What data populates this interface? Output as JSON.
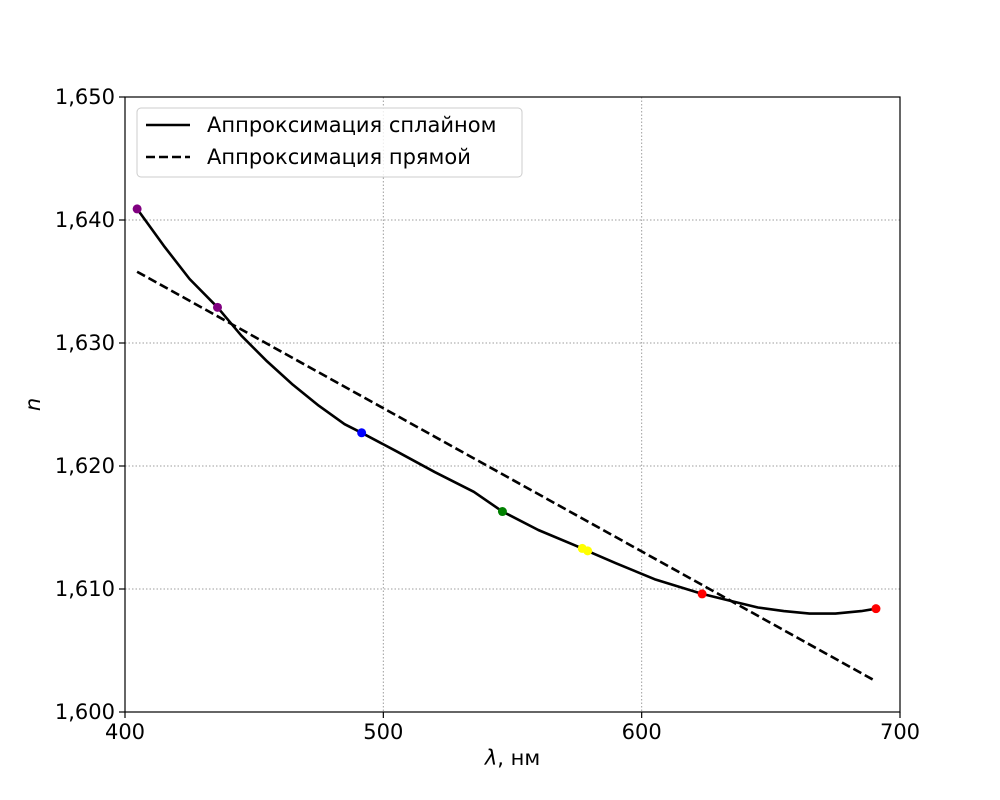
{
  "chart_data": {
    "type": "line",
    "title": "",
    "xlabel_symbol": "λ",
    "xlabel_unit": ", нм",
    "ylabel": "n",
    "xlim": [
      400,
      700
    ],
    "ylim": [
      1.6,
      1.65
    ],
    "x_ticks": [
      400,
      500,
      600,
      700
    ],
    "x_tick_labels": [
      "400",
      "500",
      "600",
      "700"
    ],
    "y_ticks": [
      1.6,
      1.61,
      1.62,
      1.63,
      1.64,
      1.65
    ],
    "y_tick_labels": [
      "1,600",
      "1,610",
      "1,620",
      "1,630",
      "1,640",
      "1,650"
    ],
    "grid": true,
    "legend_position": "upper-left",
    "series": [
      {
        "name": "Аппроксимация сплайном",
        "style": "solid",
        "color": "#000000",
        "points": [
          [
            404.7,
            1.6409
          ],
          [
            415,
            1.6379
          ],
          [
            425,
            1.6352
          ],
          [
            435.8,
            1.6329
          ],
          [
            445,
            1.6306
          ],
          [
            455,
            1.6285
          ],
          [
            465,
            1.6266
          ],
          [
            475,
            1.6249
          ],
          [
            485,
            1.6234
          ],
          [
            491.6,
            1.6227
          ],
          [
            505,
            1.6212
          ],
          [
            520,
            1.6195
          ],
          [
            535,
            1.6179
          ],
          [
            546.1,
            1.6163
          ],
          [
            560,
            1.6148
          ],
          [
            577,
            1.6133
          ],
          [
            579,
            1.6131
          ],
          [
            590,
            1.6121
          ],
          [
            605,
            1.6108
          ],
          [
            623.4,
            1.6096
          ],
          [
            635,
            1.609
          ],
          [
            645,
            1.6085
          ],
          [
            655,
            1.6082
          ],
          [
            665,
            1.608
          ],
          [
            675,
            1.608
          ],
          [
            685,
            1.6082
          ],
          [
            690.7,
            1.6084
          ]
        ]
      },
      {
        "name": "Аппроксимация прямой",
        "style": "dashed",
        "color": "#000000",
        "points": [
          [
            404.7,
            1.6358
          ],
          [
            690.7,
            1.6025
          ]
        ]
      }
    ],
    "markers": [
      {
        "x": 404.7,
        "y": 1.6409,
        "color": "#800080"
      },
      {
        "x": 435.8,
        "y": 1.6329,
        "color": "#800080"
      },
      {
        "x": 491.6,
        "y": 1.6227,
        "color": "#0000ff"
      },
      {
        "x": 546.1,
        "y": 1.6163,
        "color": "#008000"
      },
      {
        "x": 577.0,
        "y": 1.6133,
        "color": "#ffff00"
      },
      {
        "x": 579.1,
        "y": 1.6131,
        "color": "#ffff00"
      },
      {
        "x": 623.4,
        "y": 1.6096,
        "color": "#ff0000"
      },
      {
        "x": 690.7,
        "y": 1.6084,
        "color": "#ff0000"
      }
    ]
  }
}
